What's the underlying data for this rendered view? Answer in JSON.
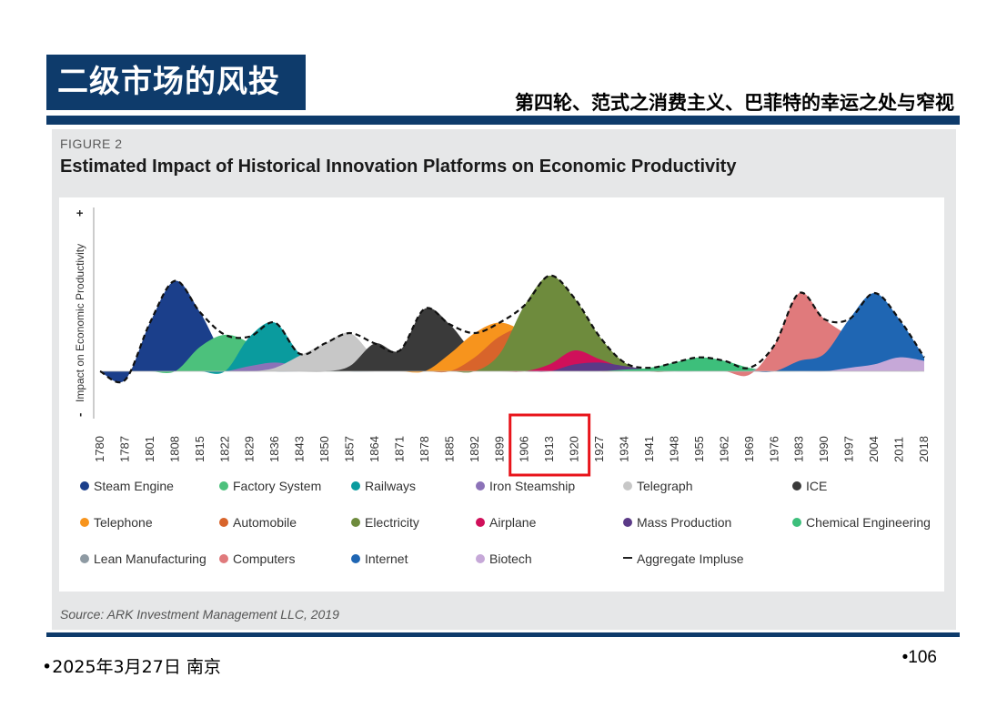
{
  "header": {
    "title": "二级市场的风投",
    "subtitle": "第四轮、范式之消费主义、巴菲特的幸运之处与窄视"
  },
  "figure": {
    "label": "FIGURE 2",
    "source": "Source: ARK Investment Management LLC, 2019"
  },
  "footer": {
    "date": "•2025年3月27日 南京",
    "page": "•106"
  },
  "chart_data": {
    "type": "area",
    "title": "Estimated Impact of Historical Innovation Platforms on Economic Productivity",
    "ylabel": "Impact on Economic Productivity",
    "ylabel_minus": "-",
    "ylabel_plus": "+",
    "x_ticks": [
      "1780",
      "1787",
      "1801",
      "1808",
      "1815",
      "1822",
      "1829",
      "1836",
      "1843",
      "1850",
      "1857",
      "1864",
      "1871",
      "1878",
      "1885",
      "1892",
      "1899",
      "1906",
      "1913",
      "1920",
      "1927",
      "1934",
      "1941",
      "1948",
      "1955",
      "1962",
      "1969",
      "1976",
      "1983",
      "1990",
      "1997",
      "2004",
      "2011",
      "2018"
    ],
    "highlight_ticks": [
      "1906",
      "1913",
      "1920"
    ],
    "highlight_color": "#e8141b",
    "series": [
      {
        "name": "Steam Engine",
        "color": "#1b3f8b",
        "values": [
          0,
          -5,
          28,
          52,
          34,
          8,
          2,
          0,
          0,
          0,
          0,
          0,
          0,
          0,
          0,
          0,
          0,
          0,
          0,
          0,
          0,
          0,
          0,
          0,
          0,
          0,
          0,
          0,
          0,
          0,
          0,
          0,
          0,
          0
        ]
      },
      {
        "name": "Factory System",
        "color": "#4cc17c",
        "values": [
          0,
          0,
          0,
          0,
          14,
          21,
          16,
          4,
          1,
          0,
          0,
          0,
          0,
          0,
          0,
          0,
          0,
          0,
          0,
          0,
          0,
          0,
          0,
          0,
          0,
          0,
          0,
          0,
          0,
          0,
          0,
          0,
          0,
          0
        ]
      },
      {
        "name": "Railways",
        "color": "#0a9b9e",
        "values": [
          0,
          0,
          0,
          0,
          0,
          0,
          20,
          28,
          10,
          2,
          0,
          0,
          0,
          0,
          0,
          0,
          0,
          0,
          0,
          0,
          0,
          0,
          0,
          0,
          0,
          0,
          0,
          0,
          0,
          0,
          0,
          0,
          0,
          0
        ]
      },
      {
        "name": "Iron Steamship",
        "color": "#8c72b8",
        "values": [
          0,
          0,
          0,
          0,
          0,
          0,
          3,
          5,
          3,
          1,
          0,
          0,
          0,
          0,
          0,
          0,
          0,
          0,
          0,
          0,
          0,
          0,
          0,
          0,
          0,
          0,
          0,
          0,
          0,
          0,
          0,
          0,
          0,
          0
        ]
      },
      {
        "name": "Telegraph",
        "color": "#c7c7c7",
        "values": [
          0,
          0,
          0,
          0,
          0,
          0,
          0,
          2,
          9,
          16,
          22,
          8,
          2,
          0,
          0,
          0,
          0,
          0,
          0,
          0,
          0,
          0,
          0,
          0,
          0,
          0,
          0,
          0,
          0,
          0,
          0,
          0,
          0,
          0
        ]
      },
      {
        "name": "ICE",
        "color": "#3a3a3a",
        "values": [
          0,
          0,
          0,
          0,
          0,
          0,
          0,
          0,
          0,
          0,
          3,
          16,
          12,
          36,
          27,
          10,
          3,
          0,
          0,
          0,
          0,
          0,
          0,
          0,
          0,
          0,
          0,
          0,
          0,
          0,
          0,
          0,
          0,
          0
        ]
      },
      {
        "name": "Telephone",
        "color": "#f7941d",
        "values": [
          0,
          0,
          0,
          0,
          0,
          0,
          0,
          0,
          0,
          0,
          0,
          0,
          0,
          0,
          10,
          22,
          28,
          22,
          8,
          2,
          0,
          0,
          0,
          0,
          0,
          0,
          0,
          0,
          0,
          0,
          0,
          0,
          0,
          0
        ]
      },
      {
        "name": "Automobile",
        "color": "#d8642b",
        "values": [
          0,
          0,
          0,
          0,
          0,
          0,
          0,
          0,
          0,
          0,
          0,
          0,
          0,
          0,
          0,
          8,
          20,
          25,
          18,
          6,
          1,
          0,
          0,
          0,
          0,
          0,
          0,
          0,
          0,
          0,
          0,
          0,
          0,
          0
        ]
      },
      {
        "name": "Electricity",
        "color": "#6e8b3d",
        "values": [
          0,
          0,
          0,
          0,
          0,
          0,
          0,
          0,
          0,
          0,
          0,
          0,
          0,
          0,
          0,
          0,
          10,
          38,
          55,
          42,
          20,
          5,
          0,
          0,
          0,
          0,
          0,
          0,
          0,
          0,
          0,
          0,
          0,
          0
        ]
      },
      {
        "name": "Airplane",
        "color": "#d0105a",
        "values": [
          0,
          0,
          0,
          0,
          0,
          0,
          0,
          0,
          0,
          0,
          0,
          0,
          0,
          0,
          0,
          0,
          0,
          0,
          4,
          12,
          7,
          2,
          0,
          0,
          0,
          0,
          0,
          0,
          0,
          0,
          0,
          0,
          0,
          0
        ]
      },
      {
        "name": "Mass Production",
        "color": "#5b3a87",
        "values": [
          0,
          0,
          0,
          0,
          0,
          0,
          0,
          0,
          0,
          0,
          0,
          0,
          0,
          0,
          0,
          0,
          0,
          0,
          0,
          4,
          5,
          3,
          1,
          0,
          0,
          0,
          0,
          0,
          0,
          0,
          0,
          0,
          0,
          0
        ]
      },
      {
        "name": "Chemical Engineering",
        "color": "#3dbf7b",
        "values": [
          0,
          0,
          0,
          0,
          0,
          0,
          0,
          0,
          0,
          0,
          0,
          0,
          0,
          0,
          0,
          0,
          0,
          0,
          0,
          0,
          0,
          1,
          2,
          5,
          8,
          6,
          2,
          0,
          0,
          0,
          0,
          0,
          0,
          0
        ]
      },
      {
        "name": "Lean Manufacturing",
        "color": "#8e9aa3",
        "values": [
          0,
          0,
          0,
          0,
          0,
          0,
          0,
          0,
          0,
          0,
          0,
          0,
          0,
          0,
          0,
          0,
          0,
          0,
          0,
          0,
          0,
          0,
          0,
          0,
          0,
          0,
          0,
          6,
          9,
          6,
          3,
          1,
          0,
          0
        ]
      },
      {
        "name": "Computers",
        "color": "#e07a7c",
        "values": [
          0,
          0,
          0,
          0,
          0,
          0,
          0,
          0,
          0,
          0,
          0,
          0,
          0,
          0,
          0,
          0,
          0,
          0,
          0,
          0,
          0,
          0,
          0,
          0,
          0,
          0,
          -2,
          15,
          45,
          30,
          20,
          8,
          2,
          0
        ]
      },
      {
        "name": "Internet",
        "color": "#1f66b3",
        "values": [
          0,
          0,
          0,
          0,
          0,
          0,
          0,
          0,
          0,
          0,
          0,
          0,
          0,
          0,
          0,
          0,
          0,
          0,
          0,
          0,
          0,
          0,
          0,
          0,
          0,
          0,
          0,
          0,
          6,
          10,
          30,
          45,
          30,
          8
        ]
      },
      {
        "name": "Biotech",
        "color": "#c6a8d8",
        "values": [
          0,
          0,
          0,
          0,
          0,
          0,
          0,
          0,
          0,
          0,
          0,
          0,
          0,
          0,
          0,
          0,
          0,
          0,
          0,
          0,
          0,
          0,
          0,
          0,
          0,
          0,
          0,
          0,
          0,
          0,
          2,
          4,
          8,
          6
        ]
      }
    ],
    "aggregate": {
      "name": "Aggregate Impluse",
      "style": "dashed",
      "color": "#111111"
    },
    "ylim": [
      -18,
      90
    ],
    "legend_position": "bottom",
    "grid": false
  }
}
